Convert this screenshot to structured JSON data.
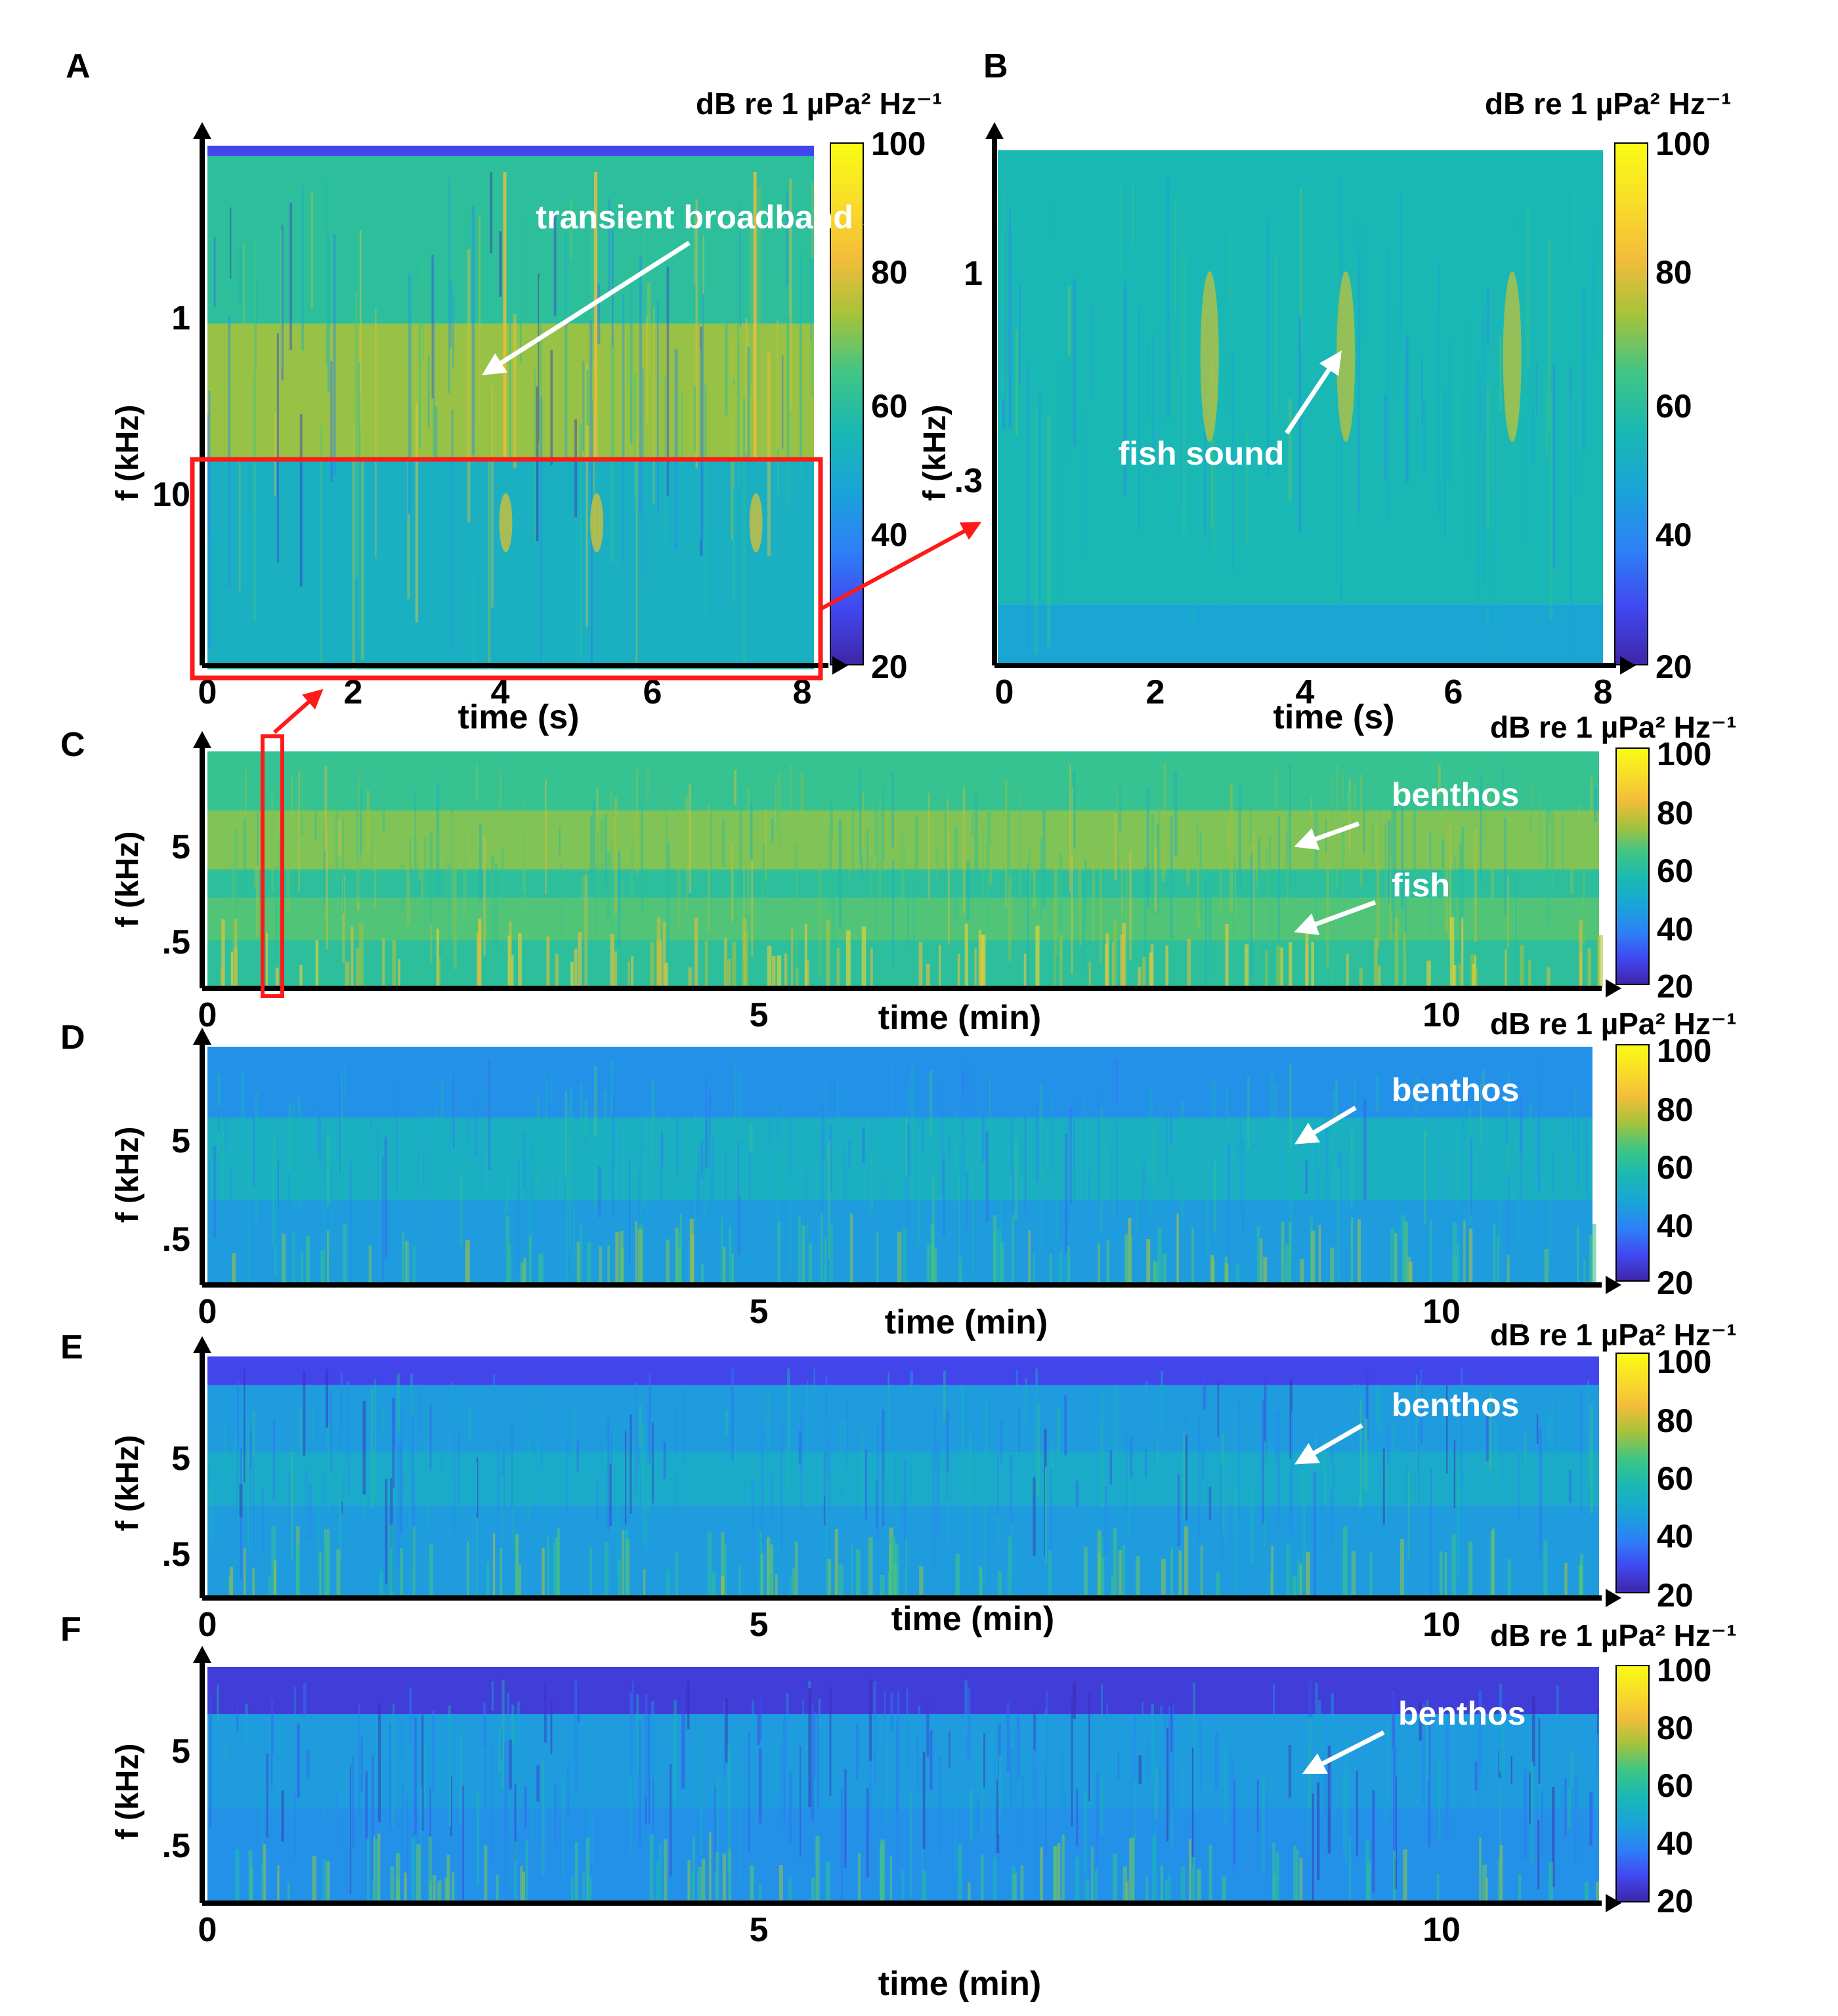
{
  "colormap": [
    "#3e26a8",
    "#4148f1",
    "#2d80f6",
    "#1aa3d9",
    "#1ab9b2",
    "#40c584",
    "#a6c23b",
    "#f3bd3a",
    "#f9de28",
    "#f9fb15"
  ],
  "colors": {
    "annotation": "#ffffff",
    "highlight_box": "#ff1a1a",
    "axis": "#000000"
  },
  "colorbar": {
    "label": "dB re 1 µPa² Hz⁻¹",
    "ticks": [
      "20",
      "40",
      "60",
      "80",
      "100"
    ],
    "range": [
      20,
      100
    ]
  },
  "chart_data": [
    {
      "id": "A",
      "panel_label": "A",
      "type": "heatmap",
      "title": "",
      "xlabel": "time (s)",
      "ylabel": "f (kHz)",
      "xlim": [
        0,
        8
      ],
      "x_ticks": [
        "0",
        "2",
        "4",
        "6",
        "8"
      ],
      "y_scale": "log",
      "y_ticks": [
        "1",
        "10"
      ],
      "annotations": [
        {
          "text": "transient broadband sound"
        }
      ],
      "highlight": {
        "x_range": [
          0,
          8
        ],
        "freq_band": "below ~1 kHz",
        "zoomed_in": "B"
      },
      "bands": [
        {
          "band": "above ~20 kHz",
          "level_db": 28
        },
        {
          "band": "~2-15 kHz",
          "level_db": 60
        },
        {
          "band": "~3-8 kHz",
          "level_db": 72
        },
        {
          "band": "below ~1 kHz",
          "level_db": 52
        }
      ],
      "events": [
        {
          "t": 3.9
        },
        {
          "t": 5.1
        },
        {
          "t": 7.2
        }
      ]
    },
    {
      "id": "B",
      "panel_label": "B",
      "type": "heatmap",
      "title": "",
      "xlabel": "time (s)",
      "ylabel": "f (kHz)",
      "xlim": [
        0,
        8
      ],
      "x_ticks": [
        "0",
        "2",
        "4",
        "6",
        "8"
      ],
      "y_scale": "log",
      "y_ticks": [
        "1",
        ".3"
      ],
      "annotations": [
        {
          "text": "fish sound"
        }
      ],
      "bands": [
        {
          "band": "~0.1-1.5 kHz",
          "level_db": 55
        },
        {
          "band": "below ~0.2 kHz",
          "level_db": 48
        }
      ],
      "events": [
        {
          "t": 2.8
        },
        {
          "t": 4.6
        },
        {
          "t": 6.8
        }
      ]
    },
    {
      "id": "C",
      "panel_label": "C",
      "type": "heatmap",
      "title": "",
      "xlabel": "time (min)",
      "ylabel": "f (kHz)",
      "xlim": [
        0,
        10.5
      ],
      "x_ticks": [
        "0",
        "5",
        "10"
      ],
      "y_scale": "log",
      "y_ticks": [
        "5",
        ".5"
      ],
      "annotations": [
        {
          "text": "benthos"
        },
        {
          "text": "fish"
        }
      ],
      "bands": [
        {
          "band": "top",
          "level_db": 62
        },
        {
          "band": "~5 kHz (benthos)",
          "level_db": 70
        },
        {
          "band": "mid",
          "level_db": 60
        },
        {
          "band": "~0.5 kHz (fish)",
          "level_db": 66
        },
        {
          "band": "low",
          "level_db": 60
        }
      ]
    },
    {
      "id": "D",
      "panel_label": "D",
      "type": "heatmap",
      "title": "",
      "xlabel": "time (min)",
      "ylabel": "f (kHz)",
      "xlim": [
        0,
        10.5
      ],
      "x_ticks": [
        "0",
        "5",
        "10"
      ],
      "y_scale": "log",
      "y_ticks": [
        "5",
        ".5"
      ],
      "annotations": [
        {
          "text": "benthos"
        }
      ],
      "bands": [
        {
          "band": "top",
          "level_db": 42
        },
        {
          "band": "~5 kHz (benthos)",
          "level_db": 52
        },
        {
          "band": "low",
          "level_db": 45
        }
      ]
    },
    {
      "id": "E",
      "panel_label": "E",
      "type": "heatmap",
      "title": "",
      "xlabel": "time (min)",
      "ylabel": "f (kHz)",
      "xlim": [
        0,
        10.5
      ],
      "x_ticks": [
        "0",
        "5",
        "10"
      ],
      "y_scale": "log",
      "y_ticks": [
        "5",
        ".5"
      ],
      "annotations": [
        {
          "text": "benthos"
        }
      ],
      "bands": [
        {
          "band": "top",
          "level_db": 28
        },
        {
          "band": "upper",
          "level_db": 45
        },
        {
          "band": "~5 kHz (benthos)",
          "level_db": 50
        },
        {
          "band": "low",
          "level_db": 45
        }
      ]
    },
    {
      "id": "F",
      "panel_label": "F",
      "type": "heatmap",
      "title": "",
      "xlabel": "time (min)",
      "ylabel": "f (kHz)",
      "xlim": [
        0,
        10.5
      ],
      "x_ticks": [
        "0",
        "5",
        "10"
      ],
      "y_scale": "log",
      "y_ticks": [
        "5",
        ".5"
      ],
      "annotations": [
        {
          "text": "benthos"
        }
      ],
      "bands": [
        {
          "band": "top",
          "level_db": 26
        },
        {
          "band": "~5 kHz (benthos)",
          "level_db": 45
        },
        {
          "band": "low",
          "level_db": 42
        }
      ]
    }
  ]
}
